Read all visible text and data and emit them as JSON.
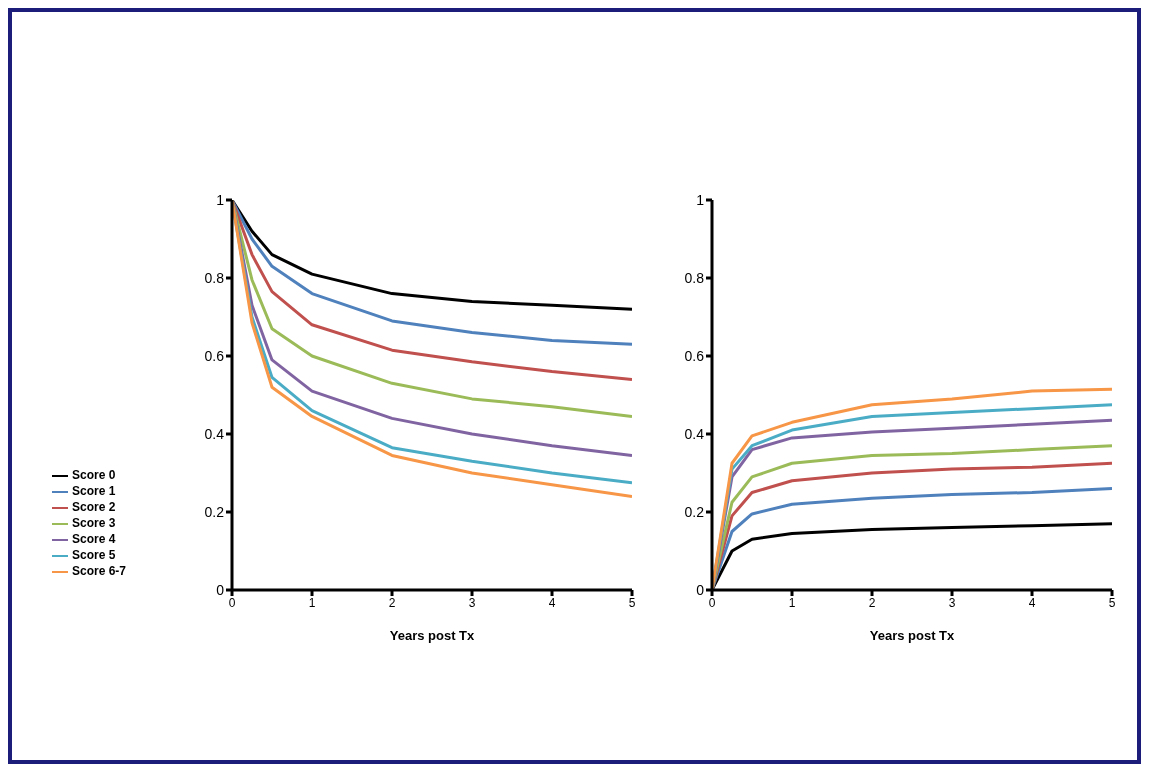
{
  "chart_data": [
    {
      "type": "line",
      "xlabel": "Years post Tx",
      "x": [
        0,
        0.25,
        0.5,
        1,
        2,
        3,
        4,
        5
      ],
      "xlim": [
        0,
        5
      ],
      "xticks": [
        0,
        1,
        2,
        3,
        4,
        5
      ],
      "ylim": [
        0,
        1
      ],
      "yticks": [
        0,
        0.2,
        0.4,
        0.6,
        0.8,
        1
      ],
      "grid": false,
      "marker": "none",
      "line_style": "solid",
      "legend": "left",
      "series": [
        {
          "name": "Score 0",
          "color": "#000000",
          "values": [
            1,
            0.92,
            0.86,
            0.81,
            0.76,
            0.74,
            0.73,
            0.72
          ]
        },
        {
          "name": "Score 1",
          "color": "#4f81bd",
          "values": [
            1,
            0.9,
            0.83,
            0.76,
            0.69,
            0.66,
            0.64,
            0.63
          ]
        },
        {
          "name": "Score 2",
          "color": "#c0504d",
          "values": [
            1,
            0.86,
            0.765,
            0.68,
            0.615,
            0.585,
            0.56,
            0.54
          ]
        },
        {
          "name": "Score 3",
          "color": "#9bbb59",
          "values": [
            1,
            0.795,
            0.67,
            0.6,
            0.53,
            0.49,
            0.47,
            0.445
          ]
        },
        {
          "name": "Score 4",
          "color": "#8064a2",
          "values": [
            1,
            0.73,
            0.59,
            0.51,
            0.44,
            0.4,
            0.37,
            0.345
          ]
        },
        {
          "name": "Score 5",
          "color": "#4bacc6",
          "values": [
            1,
            0.7,
            0.545,
            0.46,
            0.365,
            0.33,
            0.3,
            0.275
          ]
        },
        {
          "name": "Score 6-7",
          "color": "#f79646",
          "values": [
            1,
            0.685,
            0.52,
            0.445,
            0.345,
            0.3,
            0.27,
            0.24
          ]
        }
      ]
    },
    {
      "type": "line",
      "xlabel": "Years post Tx",
      "x": [
        0,
        0.25,
        0.5,
        1,
        2,
        3,
        4,
        5
      ],
      "xlim": [
        0,
        5
      ],
      "xticks": [
        0,
        1,
        2,
        3,
        4,
        5
      ],
      "ylim": [
        0,
        1
      ],
      "yticks": [
        0,
        0.2,
        0.4,
        0.6,
        0.8,
        1
      ],
      "grid": false,
      "marker": "none",
      "line_style": "solid",
      "legend": false,
      "series": [
        {
          "color": "#000000",
          "values": [
            0,
            0.1,
            0.13,
            0.145,
            0.155,
            0.16,
            0.165,
            0.17
          ]
        },
        {
          "color": "#4f81bd",
          "values": [
            0,
            0.15,
            0.195,
            0.22,
            0.235,
            0.245,
            0.25,
            0.26
          ]
        },
        {
          "color": "#c0504d",
          "values": [
            0,
            0.19,
            0.25,
            0.28,
            0.3,
            0.31,
            0.315,
            0.325
          ]
        },
        {
          "color": "#9bbb59",
          "values": [
            0,
            0.225,
            0.29,
            0.325,
            0.345,
            0.35,
            0.36,
            0.37
          ]
        },
        {
          "color": "#8064a2",
          "values": [
            0,
            0.29,
            0.36,
            0.39,
            0.405,
            0.415,
            0.425,
            0.435
          ]
        },
        {
          "color": "#4bacc6",
          "values": [
            0,
            0.31,
            0.37,
            0.41,
            0.445,
            0.455,
            0.465,
            0.475
          ]
        },
        {
          "color": "#f79646",
          "values": [
            0,
            0.325,
            0.395,
            0.43,
            0.475,
            0.49,
            0.51,
            0.515
          ]
        }
      ]
    }
  ]
}
